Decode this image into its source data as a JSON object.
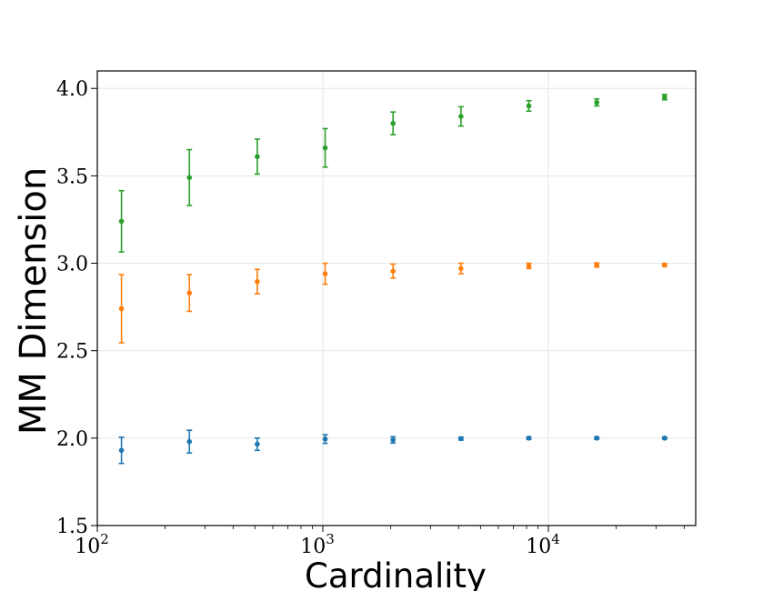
{
  "chart_data": {
    "type": "scatter",
    "title": "",
    "xlabel": "Cardinality",
    "ylabel": "MM Dimension",
    "xscale": "log",
    "xlim": [
      100,
      45000
    ],
    "ylim": [
      1.5,
      4.1
    ],
    "grid": true,
    "xticks": [
      {
        "value": 100,
        "base": "10",
        "exp": "2"
      },
      {
        "value": 1000,
        "base": "10",
        "exp": "3"
      },
      {
        "value": 10000,
        "base": "10",
        "exp": "4"
      }
    ],
    "yticks": [
      {
        "value": 1.5,
        "label": "1.5"
      },
      {
        "value": 2.0,
        "label": "2.0"
      },
      {
        "value": 2.5,
        "label": "2.5"
      },
      {
        "value": 3.0,
        "label": "3.0"
      },
      {
        "value": 3.5,
        "label": "3.5"
      },
      {
        "value": 4.0,
        "label": "4.0"
      }
    ],
    "x": [
      128,
      256,
      512,
      1024,
      2048,
      4096,
      8192,
      16384,
      32768
    ],
    "series": [
      {
        "color": "#1f77b4",
        "y": [
          1.93,
          1.98,
          1.965,
          1.995,
          1.99,
          1.997,
          2.0,
          2.0,
          2.0
        ],
        "err": [
          0.075,
          0.065,
          0.035,
          0.025,
          0.018,
          0.008,
          0.007,
          0.006,
          0.005
        ]
      },
      {
        "color": "#ff7f0e",
        "y": [
          2.74,
          2.83,
          2.895,
          2.94,
          2.955,
          2.97,
          2.985,
          2.99,
          2.99
        ],
        "err": [
          0.195,
          0.105,
          0.07,
          0.06,
          0.04,
          0.03,
          0.015,
          0.012,
          0.008
        ]
      },
      {
        "color": "#2ca02c",
        "y": [
          3.24,
          3.49,
          3.61,
          3.66,
          3.8,
          3.84,
          3.9,
          3.92,
          3.95
        ],
        "err": [
          0.175,
          0.16,
          0.1,
          0.11,
          0.065,
          0.055,
          0.03,
          0.02,
          0.015
        ]
      }
    ]
  }
}
